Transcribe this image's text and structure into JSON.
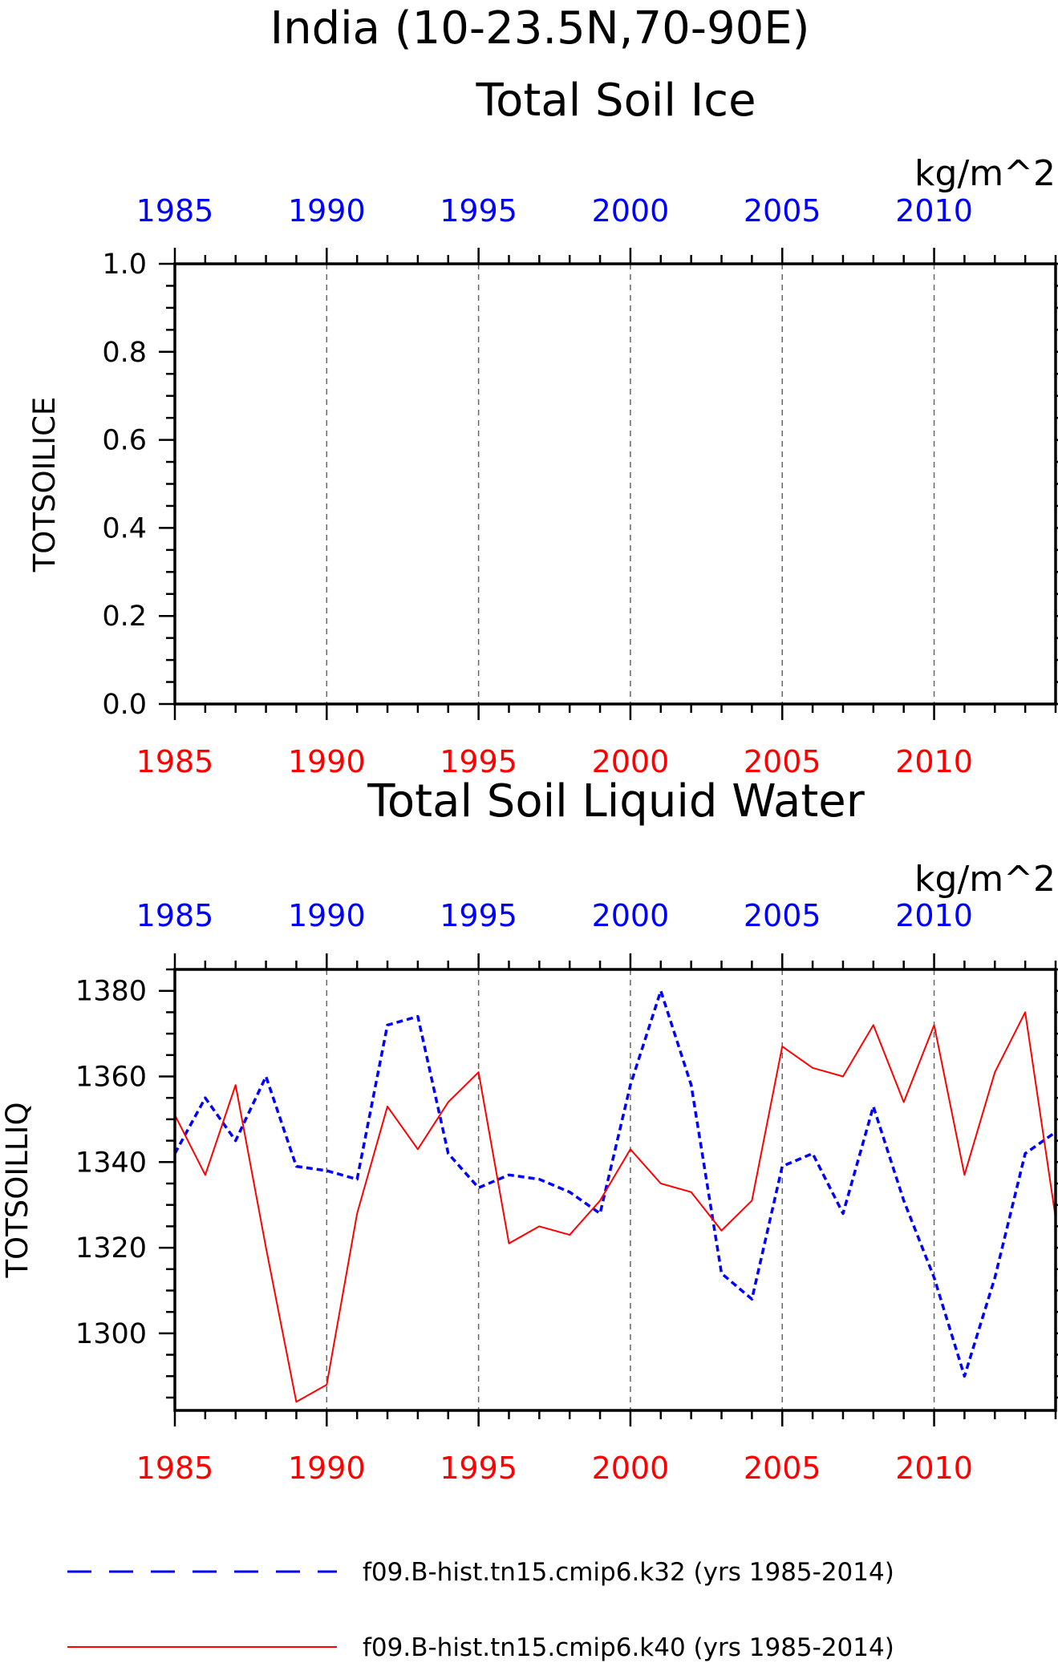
{
  "figure": {
    "title_line1": "India (10-23.5N,70-90E)",
    "legend": [
      {
        "label": "f09.B-hist.tn15.cmip6.k32 (yrs 1985-2014)",
        "color": "#0000ff",
        "style": "dashed"
      },
      {
        "label": "f09.B-hist.tn15.cmip6.k40 (yrs 1985-2014)",
        "color": "#ff0000",
        "style": "solid"
      }
    ]
  },
  "chart_data": [
    {
      "type": "line",
      "title": "Total Soil Ice",
      "units": "kg/m^2",
      "ylabel": "TOTSOILICE",
      "xlim": [
        1985,
        2014
      ],
      "ylim": [
        0,
        1
      ],
      "x_ticks": [
        "1985",
        "1990",
        "1995",
        "2000",
        "2005",
        "2010"
      ],
      "y_ticks": [
        "0.0",
        "0.2",
        "0.4",
        "0.6",
        "0.8",
        "1.0"
      ],
      "grid": "vertical dashed at major x ticks",
      "series": []
    },
    {
      "type": "line",
      "title": "Total Soil Liquid Water",
      "units": "kg/m^2",
      "ylabel": "TOTSOILLIQ",
      "xlim": [
        1985,
        2014
      ],
      "ylim": [
        1282,
        1385
      ],
      "x_ticks": [
        "1985",
        "1990",
        "1995",
        "2000",
        "2005",
        "2010"
      ],
      "y_ticks": [
        "1300",
        "1320",
        "1340",
        "1360",
        "1380"
      ],
      "grid": "vertical dashed at major x ticks",
      "x": [
        1985,
        1986,
        1987,
        1988,
        1989,
        1990,
        1991,
        1992,
        1993,
        1994,
        1995,
        1996,
        1997,
        1998,
        1999,
        2000,
        2001,
        2002,
        2003,
        2004,
        2005,
        2006,
        2007,
        2008,
        2009,
        2010,
        2011,
        2012,
        2013,
        2014
      ],
      "series": [
        {
          "name": "f09.B-hist.tn15.cmip6.k32 (yrs 1985-2014)",
          "color": "#0000ff",
          "style": "dashed",
          "values": [
            1342,
            1355,
            1345,
            1360,
            1339,
            1338,
            1336,
            1372,
            1374,
            1342,
            1334,
            1337,
            1336,
            1333,
            1328,
            1358,
            1380,
            1358,
            1314,
            1308,
            1339,
            1342,
            1328,
            1353,
            1331,
            1313,
            1290,
            1313,
            1342,
            1347
          ]
        },
        {
          "name": "f09.B-hist.tn15.cmip6.k40 (yrs 1985-2014)",
          "color": "#ff0000",
          "style": "solid",
          "values": [
            1351,
            1337,
            1358,
            1320,
            1284,
            1288,
            1328,
            1353,
            1343,
            1354,
            1361,
            1321,
            1325,
            1323,
            1331,
            1343,
            1335,
            1333,
            1324,
            1331,
            1367,
            1362,
            1360,
            1372,
            1354,
            1372,
            1337,
            1361,
            1375,
            1327
          ]
        }
      ]
    }
  ]
}
